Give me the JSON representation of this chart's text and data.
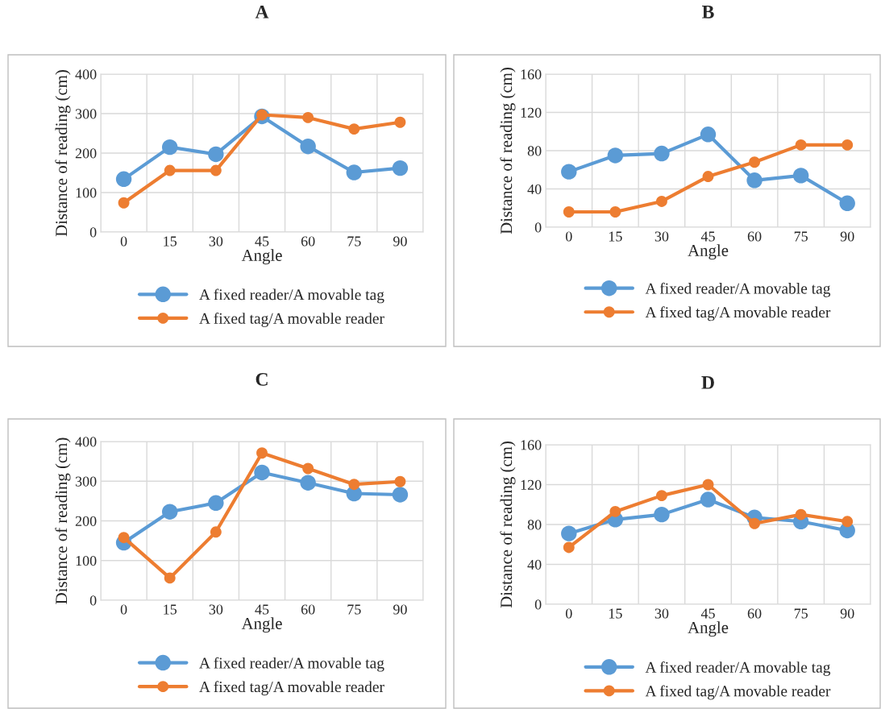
{
  "chart_data": [
    {
      "type": "line",
      "title": "A",
      "xlabel": "Angle",
      "ylabel": "Distance of reading (cm)",
      "categories": [
        "0",
        "15",
        "30",
        "45",
        "60",
        "75",
        "90"
      ],
      "ylim": [
        0,
        400
      ],
      "yticks": [
        0,
        100,
        200,
        300,
        400
      ],
      "grid": true,
      "legend": "bottom",
      "marker": "circle",
      "line_style": "solid",
      "series": [
        {
          "name": "A fixed reader/A movable tag",
          "color": "#5b9bd5",
          "values": [
            134,
            215,
            197,
            293,
            217,
            151,
            162
          ]
        },
        {
          "name": "A fixed tag/A movable reader",
          "color": "#ed7d31",
          "values": [
            74,
            156,
            156,
            297,
            290,
            261,
            278
          ]
        }
      ]
    },
    {
      "type": "line",
      "title": "B",
      "xlabel": "Angle",
      "ylabel": "Distance of reading (cm)",
      "categories": [
        "0",
        "15",
        "30",
        "45",
        "60",
        "75",
        "90"
      ],
      "ylim": [
        0,
        160
      ],
      "yticks": [
        0,
        40,
        80,
        120,
        160
      ],
      "grid": true,
      "legend": "bottom",
      "marker": "circle",
      "line_style": "solid",
      "series": [
        {
          "name": "A fixed reader/A movable tag",
          "color": "#5b9bd5",
          "values": [
            58,
            75,
            77,
            97,
            49,
            54,
            25
          ]
        },
        {
          "name": "A fixed tag/A movable reader",
          "color": "#ed7d31",
          "values": [
            16,
            16,
            27,
            53,
            68,
            86,
            86
          ]
        }
      ]
    },
    {
      "type": "line",
      "title": "C",
      "xlabel": "Angle",
      "ylabel": "Distance of reading (cm)",
      "categories": [
        "0",
        "15",
        "30",
        "45",
        "60",
        "75",
        "90"
      ],
      "ylim": [
        0,
        400
      ],
      "yticks": [
        0,
        100,
        200,
        300,
        400
      ],
      "grid": true,
      "legend": "bottom",
      "marker": "circle",
      "line_style": "solid",
      "series": [
        {
          "name": "A fixed reader/A movable tag",
          "color": "#5b9bd5",
          "values": [
            145,
            223,
            245,
            322,
            296,
            269,
            266
          ]
        },
        {
          "name": "A fixed tag/A movable reader",
          "color": "#ed7d31",
          "values": [
            158,
            56,
            172,
            371,
            332,
            292,
            299
          ]
        }
      ]
    },
    {
      "type": "line",
      "title": "D",
      "xlabel": "Angle",
      "ylabel": "Distance of reading (cm)",
      "categories": [
        "0",
        "15",
        "30",
        "45",
        "60",
        "75",
        "90"
      ],
      "ylim": [
        0,
        160
      ],
      "yticks": [
        0,
        40,
        80,
        120,
        160
      ],
      "grid": true,
      "legend": "bottom",
      "marker": "circle",
      "line_style": "solid",
      "series": [
        {
          "name": "A fixed reader/A movable tag",
          "color": "#5b9bd5",
          "values": [
            71,
            85,
            90,
            105,
            87,
            83,
            74
          ]
        },
        {
          "name": "A fixed tag/A movable reader",
          "color": "#ed7d31",
          "values": [
            57,
            93,
            109,
            120,
            81,
            90,
            83
          ]
        }
      ]
    }
  ]
}
